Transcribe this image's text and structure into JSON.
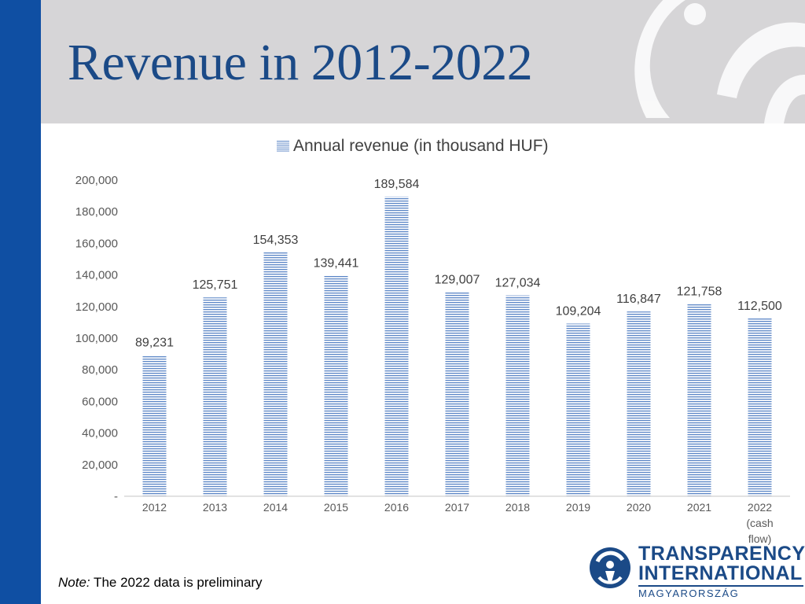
{
  "slide": {
    "title": "Revenue in 2012-2022",
    "note_label": "Note:",
    "note_text": " The 2022 data is preliminary"
  },
  "logo": {
    "line1": "TRANSPARENCY",
    "line2": "INTERNATIONAL",
    "line3": "MAGYARORSZÁG"
  },
  "colors": {
    "accent_blue": "#0f4fa3",
    "title_blue": "#1b4a87",
    "bar_stripe": "#5b86c6",
    "header_gray": "#d6d5d7"
  },
  "chart_data": {
    "type": "bar",
    "categories": [
      [
        "2012"
      ],
      [
        "2013"
      ],
      [
        "2014"
      ],
      [
        "2015"
      ],
      [
        "2016"
      ],
      [
        "2017"
      ],
      [
        "2018"
      ],
      [
        "2019"
      ],
      [
        "2020"
      ],
      [
        "2021"
      ],
      [
        "2022",
        "(cash",
        "flow)"
      ]
    ],
    "series": [
      {
        "name": "Annual revenue (in thousand HUF)",
        "values": [
          89231,
          125751,
          154353,
          139441,
          189584,
          129007,
          127034,
          109204,
          116847,
          121758,
          112500
        ],
        "value_labels": [
          "89,231",
          "125,751",
          "154,353",
          "139,441",
          "189,584",
          "129,007",
          "127,034",
          "109,204",
          "116,847",
          "121,758",
          "112,500"
        ]
      }
    ],
    "ylim": [
      0,
      200000
    ],
    "y_ticks": [
      0,
      20000,
      40000,
      60000,
      80000,
      100000,
      120000,
      140000,
      160000,
      180000,
      200000
    ],
    "y_tick_labels": [
      "-",
      "20,000",
      "40,000",
      "60,000",
      "80,000",
      "100,000",
      "120,000",
      "140,000",
      "160,000",
      "180,000",
      "200,000"
    ],
    "legend_position": "top-center",
    "grid": false,
    "bar_fill": "horizontal-striped"
  }
}
